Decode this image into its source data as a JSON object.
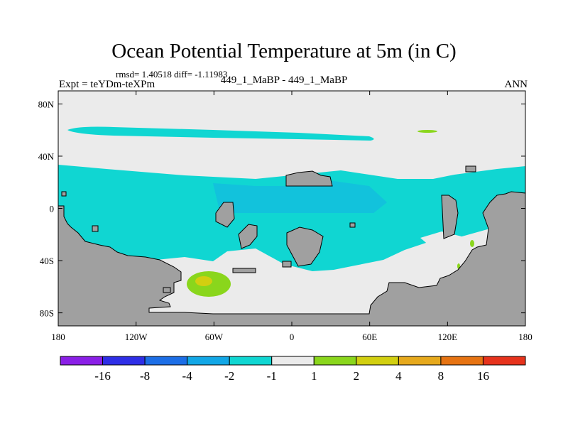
{
  "title": "Ocean Potential Temperature at 5m (in C)",
  "stats": {
    "rmsd_label": "rmsd=",
    "rmsd": "1.40518",
    "diff_label": "diff=",
    "diff": "-1.11983"
  },
  "expt": "Expt = teYDm-teXPm",
  "cases": "449_1_MaBP - 449_1_MaBP",
  "season": "ANN",
  "axes": {
    "x_ticks": [
      {
        "label": "180",
        "lon": -180
      },
      {
        "label": "120W",
        "lon": -120
      },
      {
        "label": "60W",
        "lon": -60
      },
      {
        "label": "0",
        "lon": 0
      },
      {
        "label": "60E",
        "lon": 60
      },
      {
        "label": "120E",
        "lon": 120
      },
      {
        "label": "180",
        "lon": 180
      }
    ],
    "y_ticks": [
      {
        "label": "80N",
        "lat": 80
      },
      {
        "label": "40N",
        "lat": 40
      },
      {
        "label": "0",
        "lat": 0
      },
      {
        "label": "40S",
        "lat": -40
      },
      {
        "label": "80S",
        "lat": -80
      }
    ]
  },
  "colorbar": {
    "colors": [
      "#8a1fe6",
      "#2e2ee6",
      "#1c6ee6",
      "#12a7e6",
      "#10d6d2",
      "#ebebeb",
      "#8ad61c",
      "#d2cf10",
      "#e6a91c",
      "#e67312",
      "#e6331c"
    ],
    "labels": [
      "-16",
      "-8",
      "-4",
      "-2",
      "-1",
      "1",
      "2",
      "4",
      "8",
      "16"
    ]
  },
  "map_colors": {
    "land": "#a0a0a0",
    "neutral": "#ebebeb",
    "cool": "#10d6d2",
    "cool_deep": "#12c2dc",
    "warm": "#8ad61c",
    "warm_high": "#d2cf10"
  }
}
